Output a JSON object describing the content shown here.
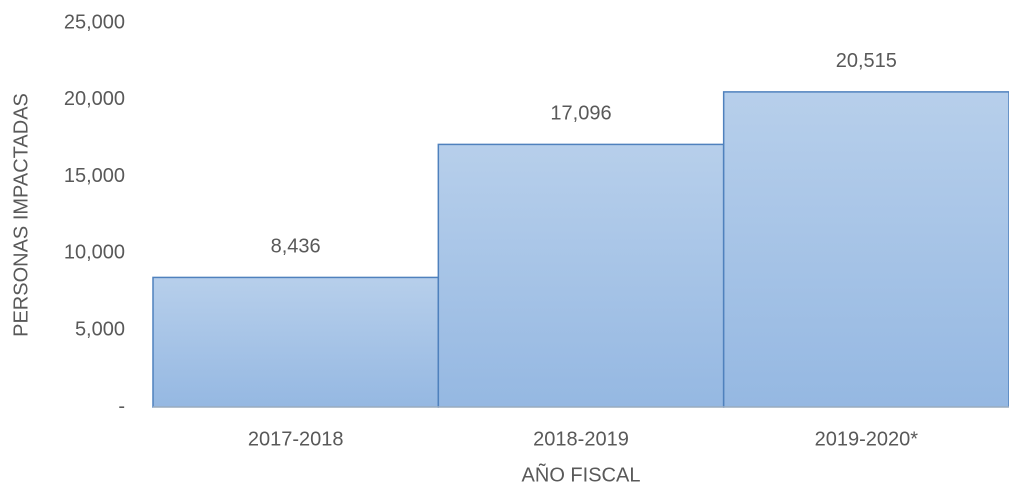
{
  "chart_data": {
    "type": "bar",
    "categories": [
      "2017-2018",
      "2018-2019",
      "2019-2020*"
    ],
    "values": [
      8436,
      17096,
      20515
    ],
    "value_labels": [
      "8,436",
      "17,096",
      "20,515"
    ],
    "color": "#95b8e2",
    "edge_color": "#4f81bd",
    "xlabel": "AÑO FISCAL",
    "ylabel": "PERSONAS IMPACTADAS",
    "ylim": [
      0,
      25000
    ],
    "yticks": [
      {
        "value": 0,
        "label": "-"
      },
      {
        "value": 5000,
        "label": "5,000"
      },
      {
        "value": 10000,
        "label": "10,000"
      },
      {
        "value": 15000,
        "label": "15,000"
      },
      {
        "value": 20000,
        "label": "20,000"
      },
      {
        "value": 25000,
        "label": "25,000"
      }
    ],
    "grid": false
  }
}
